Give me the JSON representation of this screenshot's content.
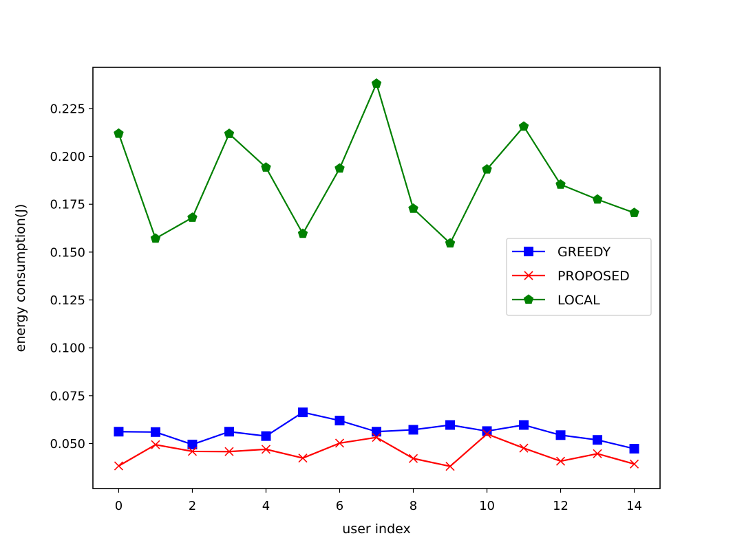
{
  "chart_data": {
    "type": "line",
    "title": "",
    "xlabel": "user index",
    "ylabel": "energy consumption(J)",
    "xlim": [
      -0.7,
      14.7
    ],
    "ylim": [
      0.0265,
      0.2465
    ],
    "xticks": [
      0,
      2,
      4,
      6,
      8,
      10,
      12,
      14
    ],
    "yticks": [
      0.05,
      0.075,
      0.1,
      0.125,
      0.15,
      0.175,
      0.2,
      0.225
    ],
    "ytick_labels": [
      "0.050",
      "0.075",
      "0.100",
      "0.125",
      "0.150",
      "0.175",
      "0.200",
      "0.225"
    ],
    "x": [
      0,
      1,
      2,
      3,
      4,
      5,
      6,
      7,
      8,
      9,
      10,
      11,
      12,
      13,
      14
    ],
    "legend_position": "center-right",
    "grid": false,
    "series": [
      {
        "name": "GREEDY",
        "color": "#0000ff",
        "marker": "square",
        "values": [
          0.0562,
          0.056,
          0.0495,
          0.0562,
          0.0539,
          0.0663,
          0.062,
          0.0562,
          0.0572,
          0.0597,
          0.0565,
          0.0597,
          0.0544,
          0.0519,
          0.0473
        ]
      },
      {
        "name": "PROPOSED",
        "color": "#ff0000",
        "marker": "x",
        "values": [
          0.0383,
          0.0494,
          0.0459,
          0.0458,
          0.047,
          0.0424,
          0.0502,
          0.0532,
          0.0422,
          0.0381,
          0.055,
          0.0476,
          0.0408,
          0.0447,
          0.0393
        ]
      },
      {
        "name": "LOCAL",
        "color": "#008000",
        "marker": "pentagon",
        "values": [
          0.2119,
          0.1571,
          0.168,
          0.2118,
          0.1942,
          0.1596,
          0.1937,
          0.238,
          0.1727,
          0.1546,
          0.1932,
          0.2156,
          0.1853,
          0.1775,
          0.1705
        ]
      }
    ]
  }
}
